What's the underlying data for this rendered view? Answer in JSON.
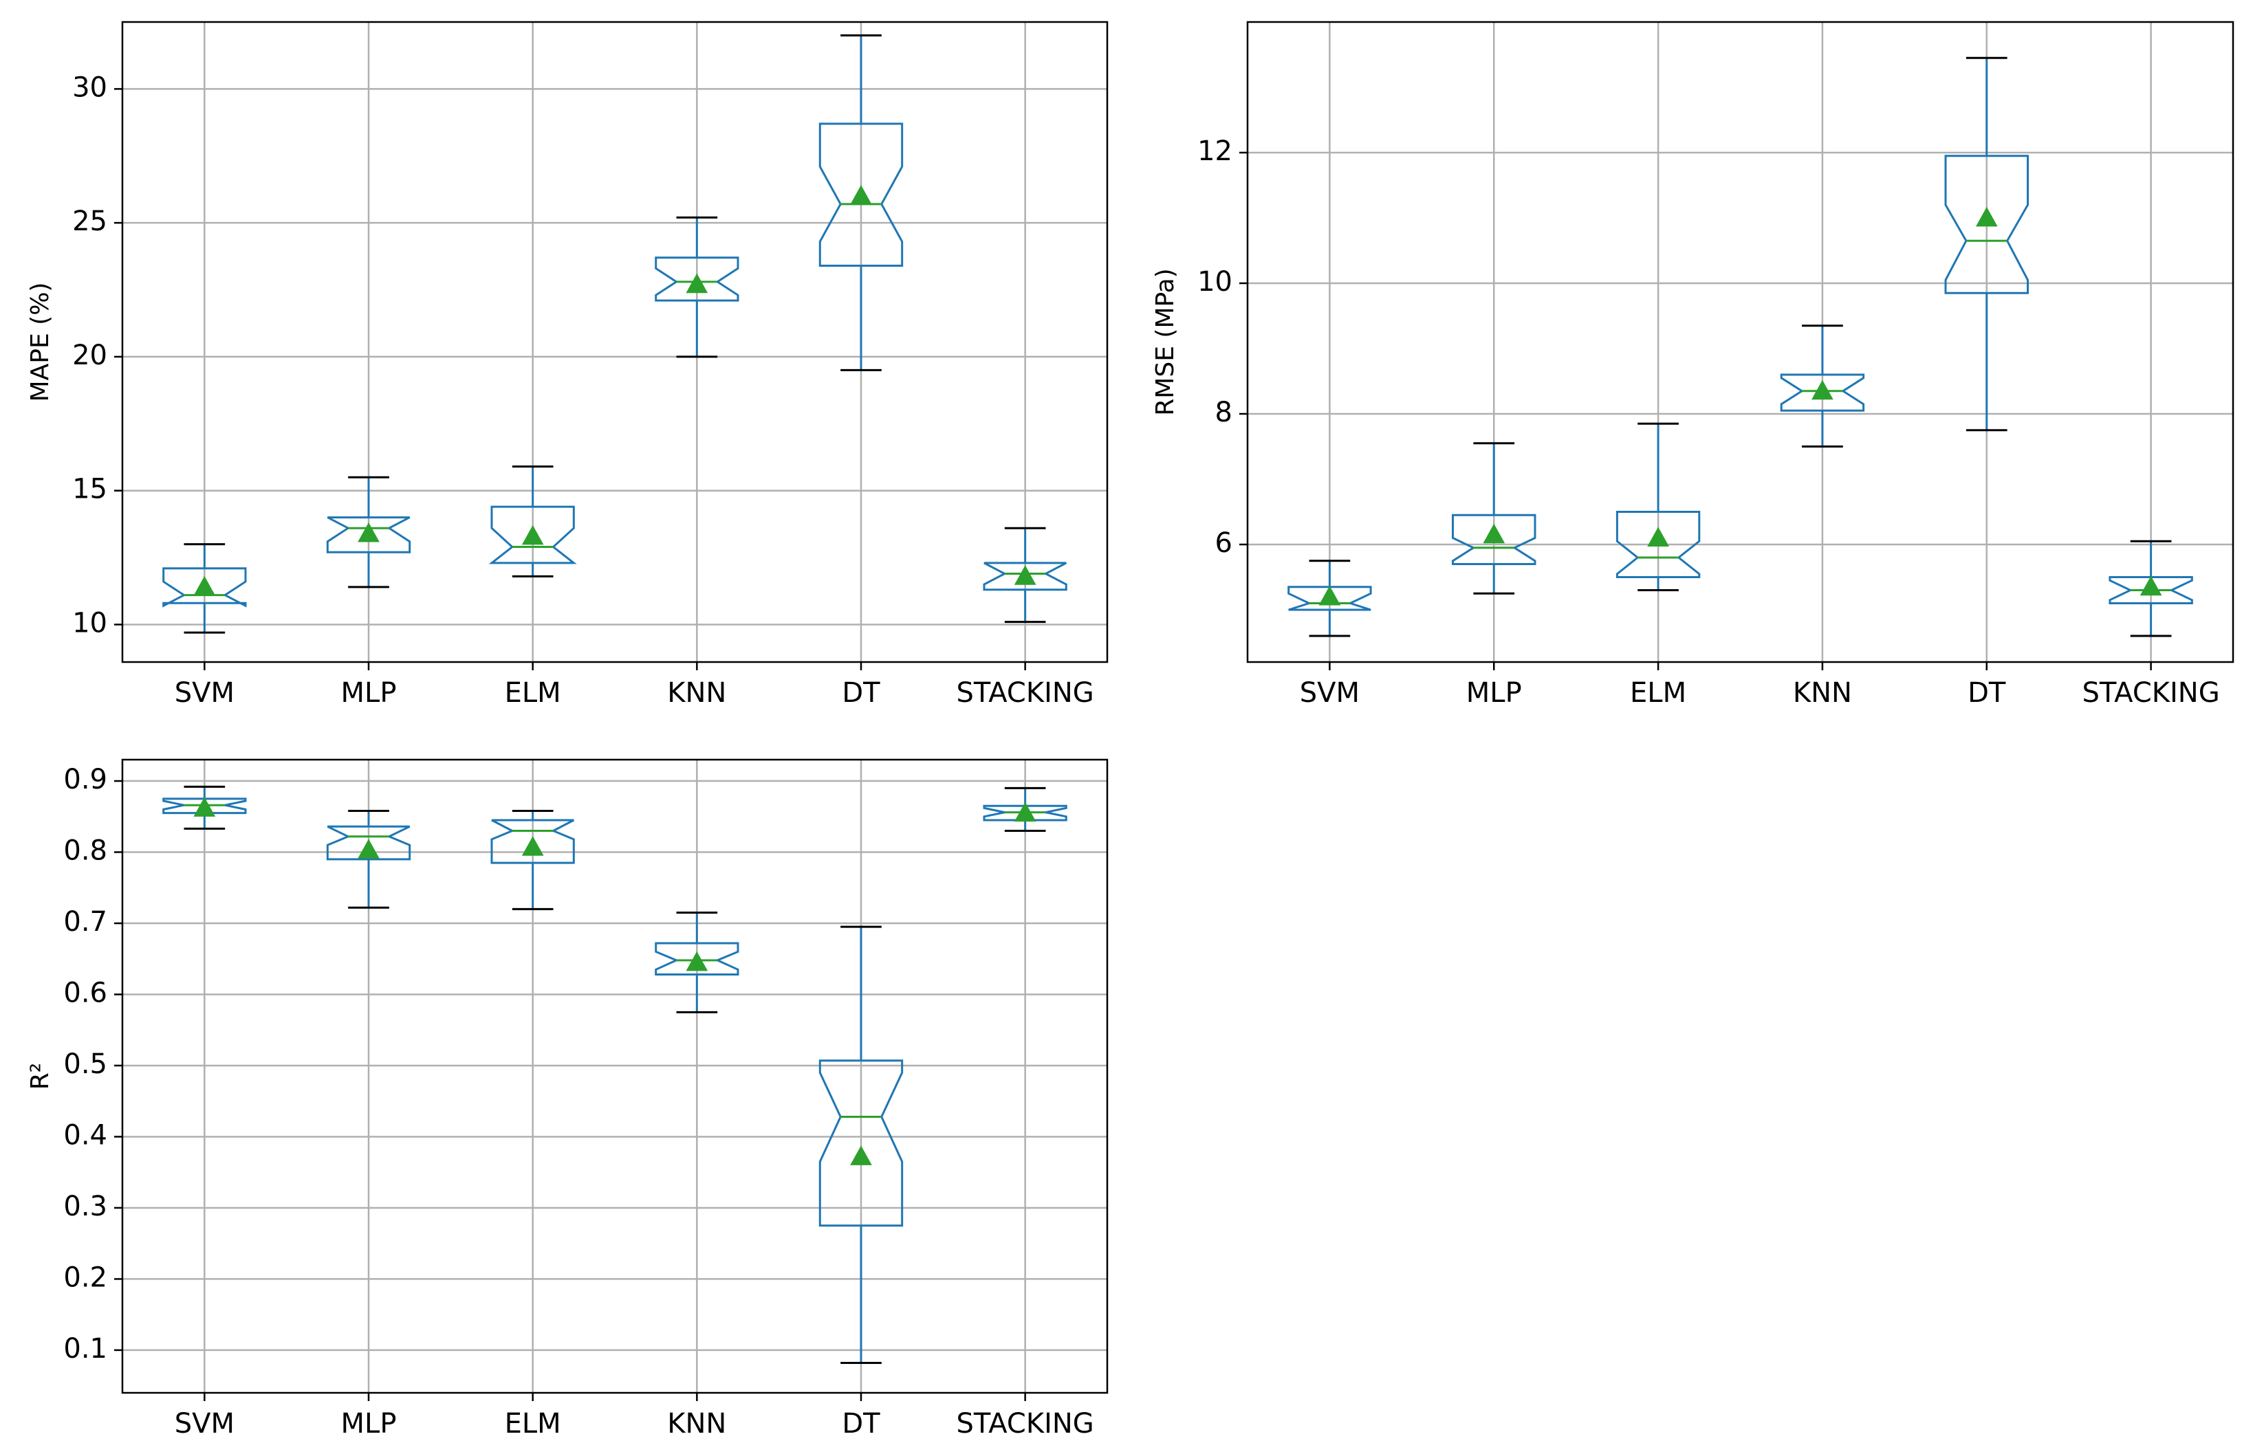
{
  "colors": {
    "box": "#1f77b4",
    "median": "#2ca02c",
    "mean": "#2ca02c",
    "whisker_cap": "#000000",
    "grid": "#b0b0b0",
    "frame": "#000000"
  },
  "chart_data": [
    {
      "type": "boxplot",
      "notched": true,
      "show_means": true,
      "ylabel": "MAPE (%)",
      "categories": [
        "SVM",
        "MLP",
        "ELM",
        "KNN",
        "DT",
        "STACKING"
      ],
      "ylim": [
        8.6,
        32.5
      ],
      "yticks": [
        10,
        15,
        20,
        25,
        30
      ],
      "ytick_labels": [
        "10",
        "15",
        "20",
        "25",
        "30"
      ],
      "grid": true,
      "boxes": [
        {
          "whislo": 9.7,
          "q1": 10.8,
          "med": 11.1,
          "q3": 12.1,
          "whishi": 13.0,
          "notchlo": 10.7,
          "notchhi": 11.6,
          "mean": 11.4
        },
        {
          "whislo": 11.4,
          "q1": 12.7,
          "med": 13.6,
          "q3": 14.0,
          "whishi": 15.5,
          "notchlo": 13.1,
          "notchhi": 14.0,
          "mean": 13.4
        },
        {
          "whislo": 11.8,
          "q1": 12.3,
          "med": 12.9,
          "q3": 14.4,
          "whishi": 15.9,
          "notchlo": 12.3,
          "notchhi": 13.6,
          "mean": 13.3
        },
        {
          "whislo": 20.0,
          "q1": 22.1,
          "med": 22.8,
          "q3": 23.7,
          "whishi": 25.2,
          "notchlo": 22.3,
          "notchhi": 23.3,
          "mean": 22.7
        },
        {
          "whislo": 19.5,
          "q1": 23.4,
          "med": 25.7,
          "q3": 28.7,
          "whishi": 32.0,
          "notchlo": 24.3,
          "notchhi": 27.1,
          "mean": 26.0
        },
        {
          "whislo": 10.1,
          "q1": 11.3,
          "med": 11.9,
          "q3": 12.3,
          "whishi": 13.6,
          "notchlo": 11.5,
          "notchhi": 12.3,
          "mean": 11.8
        }
      ]
    },
    {
      "type": "boxplot",
      "notched": true,
      "show_means": true,
      "ylabel": "RMSE (MPa)",
      "categories": [
        "SVM",
        "MLP",
        "ELM",
        "KNN",
        "DT",
        "STACKING"
      ],
      "ylim": [
        4.2,
        14.0
      ],
      "yticks": [
        6,
        8,
        10,
        12
      ],
      "ytick_labels": [
        "6",
        "8",
        "10",
        "12"
      ],
      "grid": true,
      "boxes": [
        {
          "whislo": 4.6,
          "q1": 5.0,
          "med": 5.1,
          "q3": 5.35,
          "whishi": 5.75,
          "notchlo": 5.0,
          "notchhi": 5.25,
          "mean": 5.2
        },
        {
          "whislo": 5.25,
          "q1": 5.7,
          "med": 5.95,
          "q3": 6.45,
          "whishi": 7.55,
          "notchlo": 5.75,
          "notchhi": 6.1,
          "mean": 6.15
        },
        {
          "whislo": 5.3,
          "q1": 5.5,
          "med": 5.8,
          "q3": 6.5,
          "whishi": 7.85,
          "notchlo": 5.55,
          "notchhi": 6.05,
          "mean": 6.1
        },
        {
          "whislo": 7.5,
          "q1": 8.05,
          "med": 8.35,
          "q3": 8.6,
          "whishi": 9.35,
          "notchlo": 8.15,
          "notchhi": 8.55,
          "mean": 8.35
        },
        {
          "whislo": 7.75,
          "q1": 9.85,
          "med": 10.65,
          "q3": 11.95,
          "whishi": 13.45,
          "notchlo": 10.05,
          "notchhi": 11.2,
          "mean": 11.0
        },
        {
          "whislo": 4.6,
          "q1": 5.1,
          "med": 5.3,
          "q3": 5.5,
          "whishi": 6.05,
          "notchlo": 5.15,
          "notchhi": 5.45,
          "mean": 5.35
        }
      ]
    },
    {
      "type": "boxplot",
      "notched": true,
      "show_means": true,
      "ylabel": "R²",
      "categories": [
        "SVM",
        "MLP",
        "ELM",
        "KNN",
        "DT",
        "STACKING"
      ],
      "ylim": [
        0.04,
        0.93
      ],
      "yticks": [
        0.1,
        0.2,
        0.3,
        0.4,
        0.5,
        0.6,
        0.7,
        0.8,
        0.9
      ],
      "ytick_labels": [
        "0.1",
        "0.2",
        "0.3",
        "0.4",
        "0.5",
        "0.6",
        "0.7",
        "0.8",
        "0.9"
      ],
      "grid": true,
      "boxes": [
        {
          "whislo": 0.833,
          "q1": 0.855,
          "med": 0.866,
          "q3": 0.875,
          "whishi": 0.892,
          "notchlo": 0.86,
          "notchhi": 0.872,
          "mean": 0.862
        },
        {
          "whislo": 0.722,
          "q1": 0.79,
          "med": 0.822,
          "q3": 0.836,
          "whishi": 0.858,
          "notchlo": 0.81,
          "notchhi": 0.836,
          "mean": 0.803
        },
        {
          "whislo": 0.72,
          "q1": 0.785,
          "med": 0.83,
          "q3": 0.845,
          "whishi": 0.858,
          "notchlo": 0.818,
          "notchhi": 0.845,
          "mean": 0.807
        },
        {
          "whislo": 0.575,
          "q1": 0.628,
          "med": 0.648,
          "q3": 0.672,
          "whishi": 0.715,
          "notchlo": 0.635,
          "notchhi": 0.66,
          "mean": 0.645
        },
        {
          "whislo": 0.082,
          "q1": 0.275,
          "med": 0.428,
          "q3": 0.507,
          "whishi": 0.695,
          "notchlo": 0.365,
          "notchhi": 0.49,
          "mean": 0.372
        },
        {
          "whislo": 0.83,
          "q1": 0.845,
          "med": 0.856,
          "q3": 0.865,
          "whishi": 0.89,
          "notchlo": 0.85,
          "notchhi": 0.862,
          "mean": 0.855
        }
      ]
    }
  ]
}
